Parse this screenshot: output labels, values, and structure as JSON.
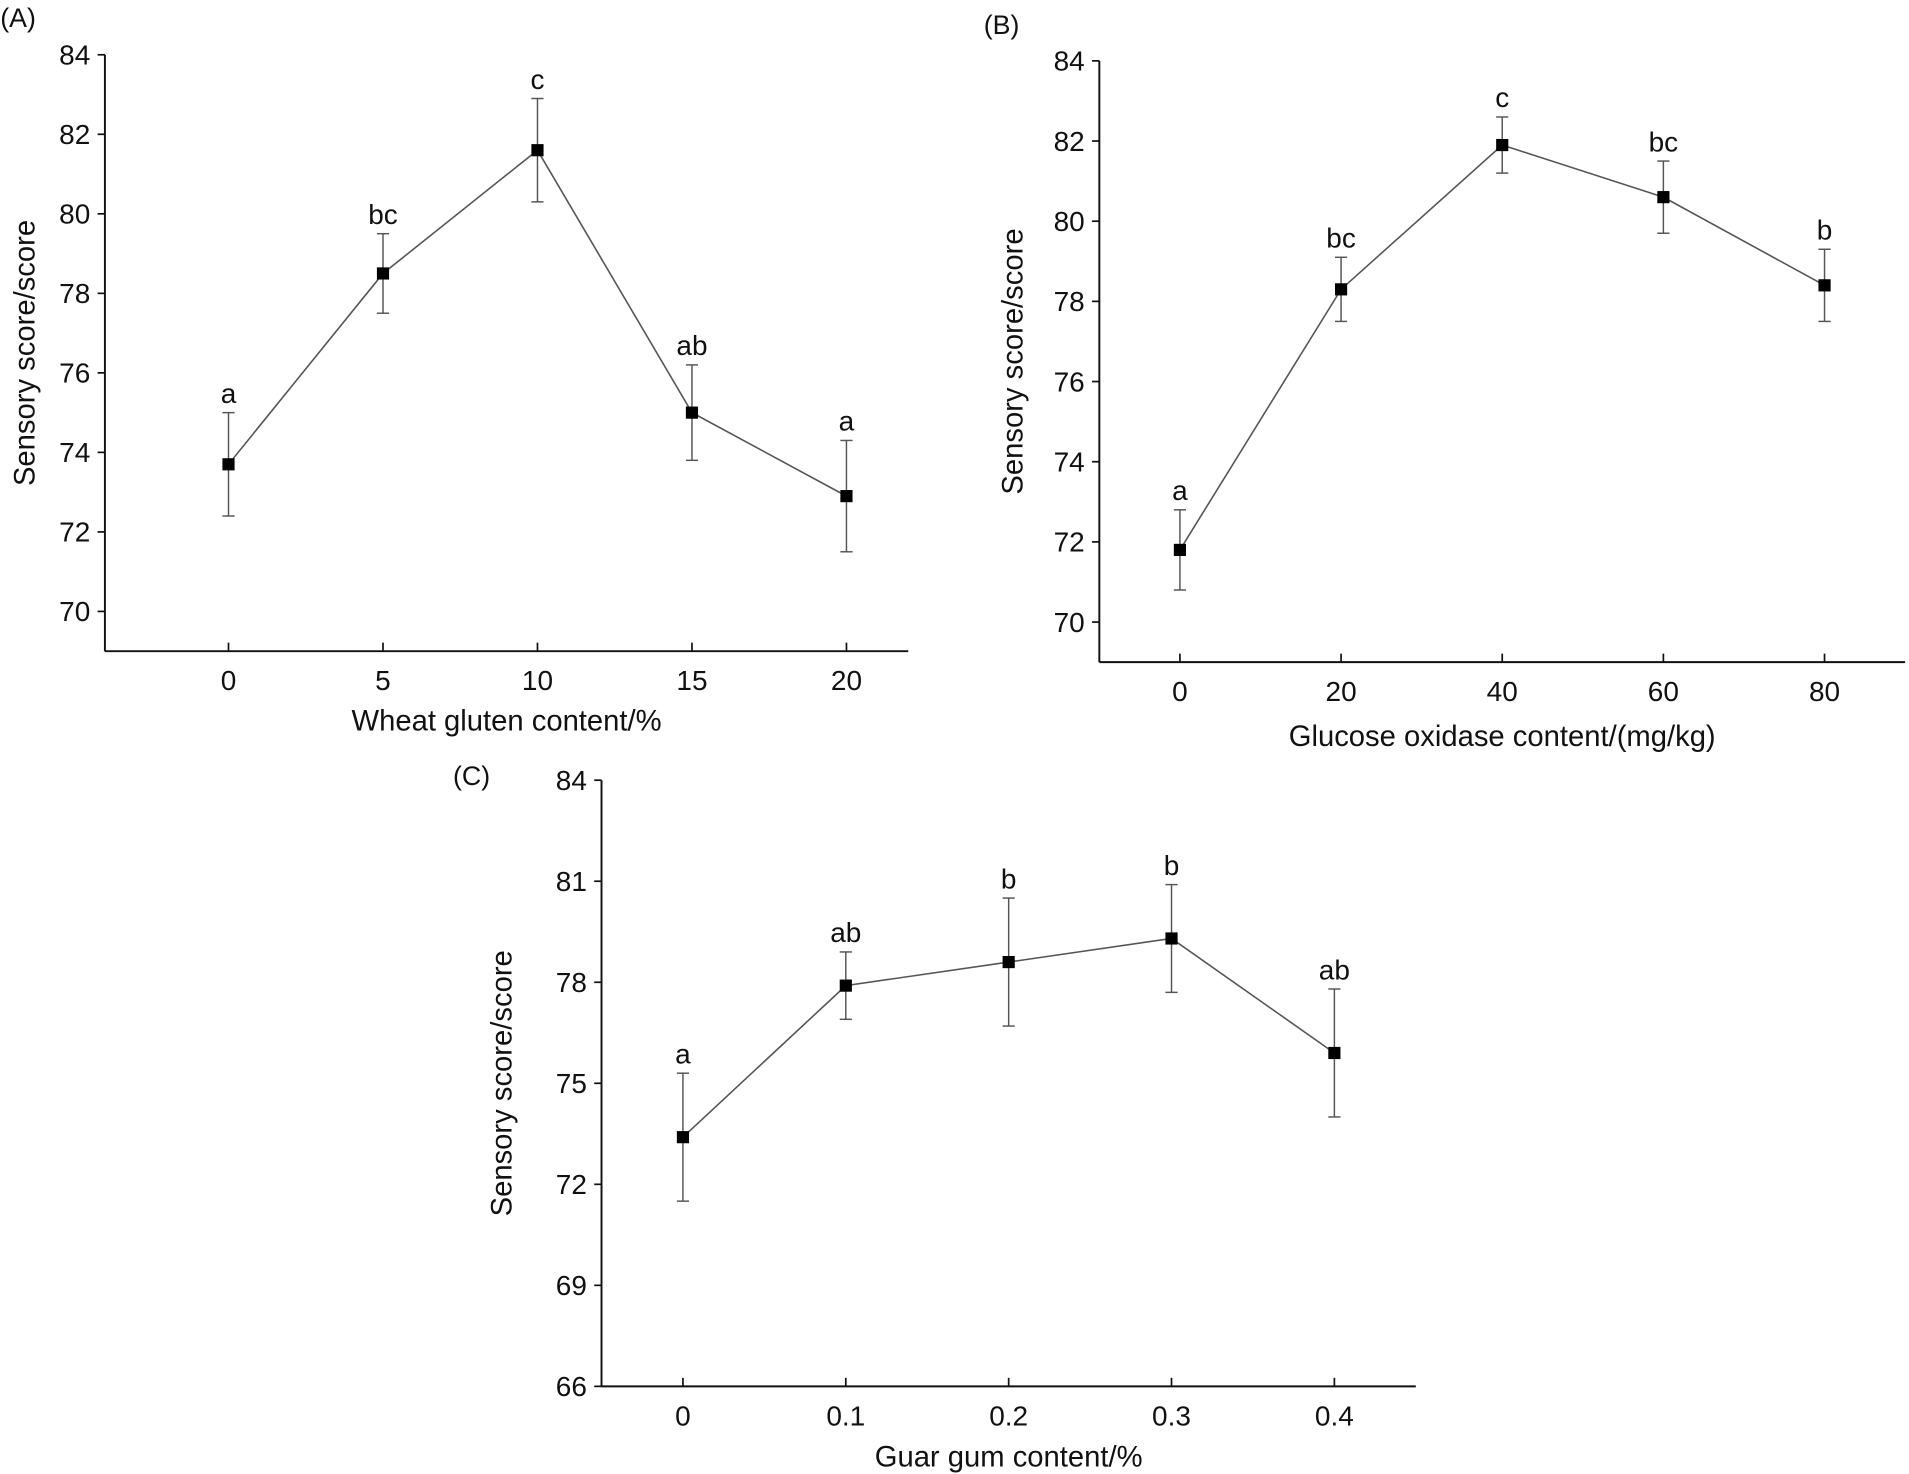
{
  "chart_data": [
    {
      "type": "line",
      "panel_label": "(A)",
      "xlabel": "Wheat gluten content/%",
      "ylabel": "Sensory score/score",
      "x": [
        0,
        5,
        10,
        15,
        20
      ],
      "x_tick_labels": [
        "0",
        "5",
        "10",
        "15",
        "20"
      ],
      "xlim": [
        -4,
        22
      ],
      "ylim": [
        69,
        84
      ],
      "y_ticks": [
        70,
        72,
        74,
        76,
        78,
        80,
        82,
        84
      ],
      "series": [
        {
          "name": "Sensory score",
          "values": [
            73.7,
            78.5,
            81.6,
            75.0,
            72.9
          ],
          "error_low": [
            72.4,
            77.5,
            80.3,
            73.8,
            71.5
          ],
          "error_high": [
            75.0,
            79.5,
            82.9,
            76.2,
            74.3
          ],
          "significance": [
            "a",
            "bc",
            "c",
            "ab",
            "a"
          ]
        }
      ],
      "grid": false
    },
    {
      "type": "line",
      "panel_label": "(B)",
      "xlabel": "Glucose oxidase content/(mg/kg)",
      "ylabel": "Sensory score/score",
      "x": [
        0,
        20,
        40,
        60,
        80
      ],
      "x_tick_labels": [
        "0",
        "20",
        "40",
        "60",
        "80"
      ],
      "xlim": [
        -10,
        90
      ],
      "ylim": [
        69,
        84
      ],
      "y_ticks": [
        70,
        72,
        74,
        76,
        78,
        80,
        82,
        84
      ],
      "series": [
        {
          "name": "Sensory score",
          "values": [
            71.8,
            78.3,
            81.9,
            80.6,
            78.4
          ],
          "error_low": [
            70.8,
            77.5,
            81.2,
            79.7,
            77.5
          ],
          "error_high": [
            72.8,
            79.1,
            82.6,
            81.5,
            79.3
          ],
          "significance": [
            "a",
            "bc",
            "c",
            "bc",
            "b"
          ]
        }
      ],
      "grid": false
    },
    {
      "type": "line",
      "panel_label": "(C)",
      "xlabel": "Guar gum content/%",
      "ylabel": "Sensory score/score",
      "x": [
        0,
        0.1,
        0.2,
        0.3,
        0.4
      ],
      "x_tick_labels": [
        "0",
        "0.1",
        "0.2",
        "0.3",
        "0.4"
      ],
      "xlim": [
        -0.05,
        0.45
      ],
      "ylim": [
        66,
        84
      ],
      "y_ticks": [
        66,
        69,
        72,
        75,
        78,
        81,
        84
      ],
      "series": [
        {
          "name": "Sensory score",
          "values": [
            73.4,
            77.9,
            78.6,
            79.3,
            75.9
          ],
          "error_low": [
            71.5,
            76.9,
            76.7,
            77.7,
            74.0
          ],
          "error_high": [
            75.3,
            78.9,
            80.5,
            80.9,
            77.8
          ],
          "significance": [
            "a",
            "ab",
            "b",
            "b",
            "ab"
          ]
        }
      ],
      "grid": false
    }
  ]
}
